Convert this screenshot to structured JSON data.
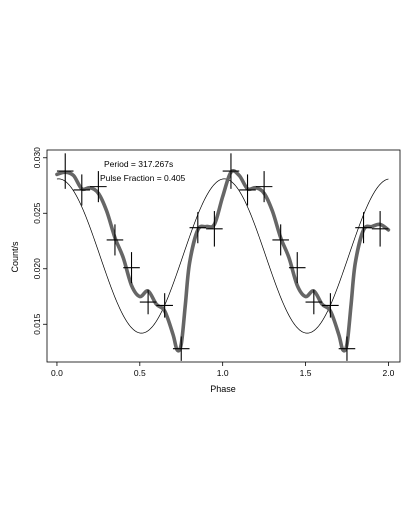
{
  "chart_data": {
    "type": "line",
    "xlabel": "Phase",
    "ylabel": "Count/s",
    "xlim": [
      -0.06,
      2.07
    ],
    "ylim": [
      0.0116,
      0.0307
    ],
    "x_ticks": [
      0.0,
      0.5,
      1.0,
      1.5,
      2.0
    ],
    "x_tick_labels": [
      "0.0",
      "0.5",
      "1.0",
      "1.5",
      "2.0"
    ],
    "y_ticks": [
      0.015,
      0.02,
      0.025,
      0.03
    ],
    "y_tick_labels": [
      "0.015",
      "0.020",
      "0.025",
      "0.030"
    ],
    "grid": false,
    "annotations": [
      "Period = 317.267s",
      "Pulse Fraction = 0.405"
    ],
    "series": [
      {
        "kind": "data-with-errors",
        "x": [
          0.05,
          0.15,
          0.25,
          0.35,
          0.45,
          0.55,
          0.65,
          0.75,
          0.85,
          0.95,
          1.05,
          1.15,
          1.25,
          1.35,
          1.45,
          1.55,
          1.65,
          1.75,
          1.85,
          1.95
        ],
        "y": [
          0.0288,
          0.0271,
          0.0274,
          0.0226,
          0.0201,
          0.017,
          0.0167,
          0.0128,
          0.0237,
          0.0236,
          0.0288,
          0.0271,
          0.0274,
          0.0226,
          0.0201,
          0.017,
          0.0167,
          0.0128,
          0.0237,
          0.0236
        ],
        "xerr": 0.05,
        "yerr": [
          0.0016,
          0.0014,
          0.0014,
          0.0014,
          0.0014,
          0.0011,
          0.0011,
          0.0011,
          0.0014,
          0.0016,
          0.0016,
          0.0014,
          0.0014,
          0.0014,
          0.0014,
          0.0011,
          0.0011,
          0.0011,
          0.0014,
          0.0016
        ],
        "color": "#000000"
      },
      {
        "kind": "smooth-curve",
        "x": [
          0.0,
          0.05,
          0.1,
          0.15,
          0.2,
          0.25,
          0.3,
          0.35,
          0.4,
          0.45,
          0.5,
          0.55,
          0.6,
          0.65,
          0.7,
          0.725,
          0.75,
          0.775,
          0.8,
          0.85,
          0.9,
          0.95,
          1.0,
          1.05,
          1.1,
          1.15,
          1.2,
          1.25,
          1.3,
          1.35,
          1.4,
          1.45,
          1.5,
          1.55,
          1.6,
          1.65,
          1.7,
          1.725,
          1.75,
          1.775,
          1.8,
          1.85,
          1.9,
          1.95,
          2.0
        ],
        "y": [
          0.0285,
          0.0287,
          0.0284,
          0.0272,
          0.0273,
          0.0268,
          0.0252,
          0.0228,
          0.021,
          0.0185,
          0.0175,
          0.018,
          0.0168,
          0.0162,
          0.0141,
          0.0127,
          0.0132,
          0.0168,
          0.0205,
          0.0235,
          0.0238,
          0.024,
          0.0265,
          0.0287,
          0.0284,
          0.0272,
          0.0273,
          0.0268,
          0.0252,
          0.0228,
          0.021,
          0.0185,
          0.0175,
          0.018,
          0.0168,
          0.0162,
          0.0141,
          0.0127,
          0.0132,
          0.0168,
          0.0205,
          0.0235,
          0.0238,
          0.024,
          0.0235
        ],
        "color": "#666666"
      },
      {
        "kind": "sinusoid-fit",
        "mean": 0.02115,
        "amplitude": 0.00695,
        "peak_phase": 0.01,
        "color": "#000000"
      }
    ]
  }
}
